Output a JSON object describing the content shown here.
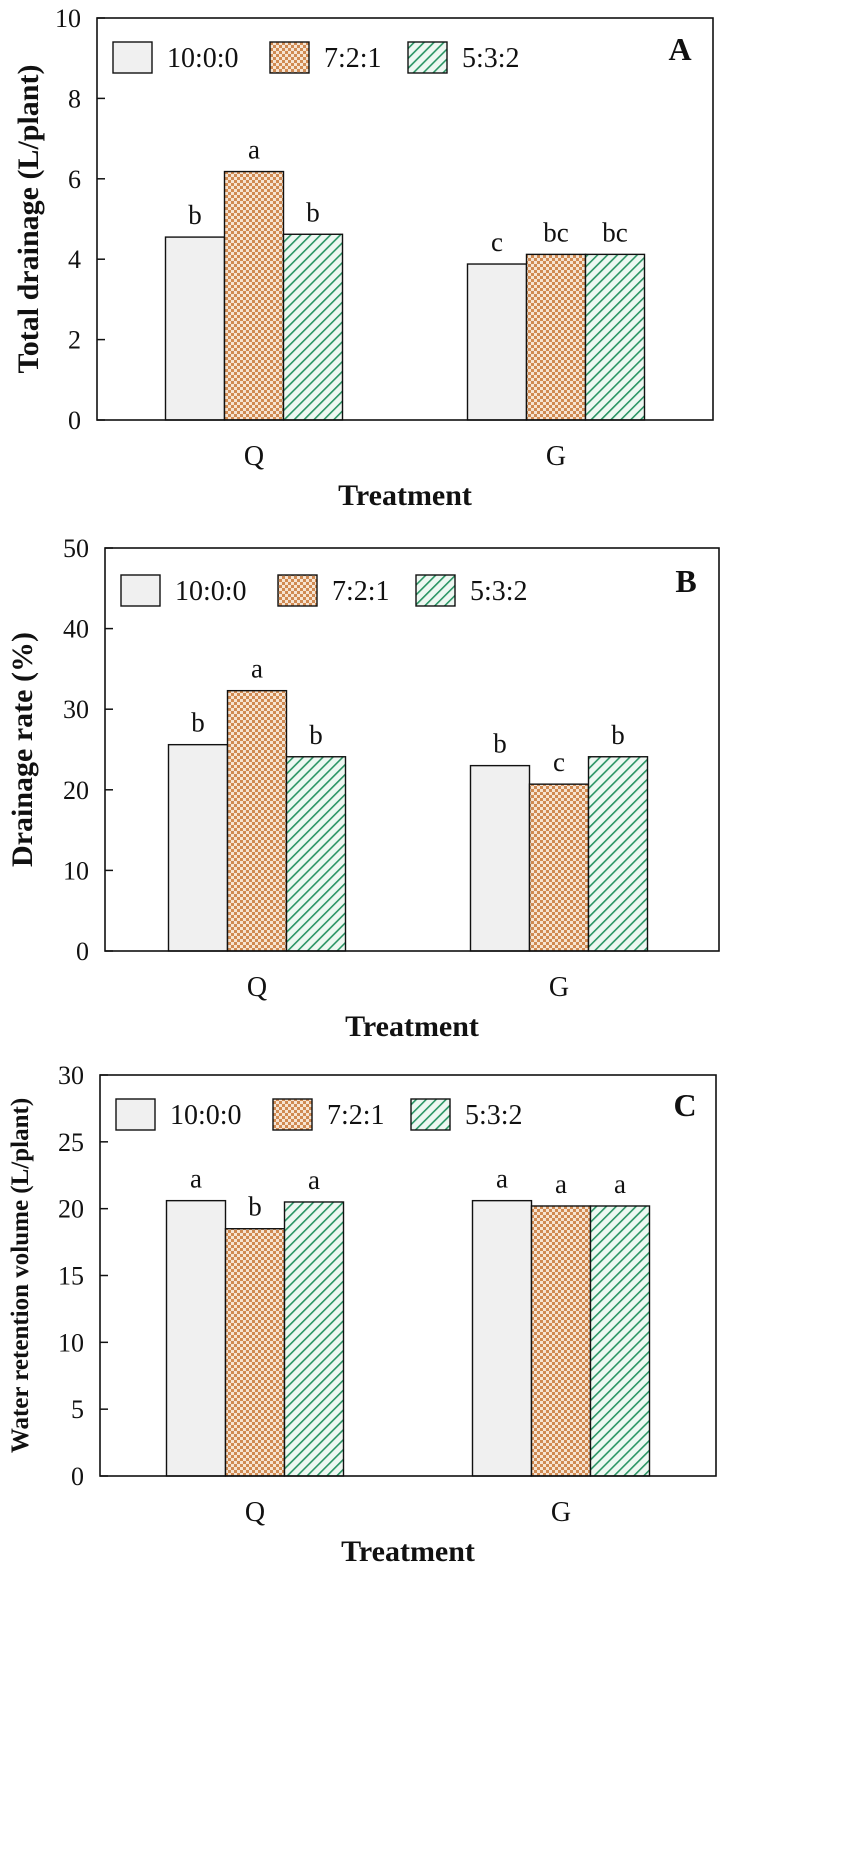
{
  "colors": {
    "bar_10_0_0": "#f0f0f0",
    "bar_7_2_1": "#d9955c",
    "bar_5_3_2": "#2f9a6a",
    "stroke": "#111111"
  },
  "chart_data": [
    {
      "type": "bar",
      "panel": "A",
      "xlabel": "Treatment",
      "ylabel": "Total drainage (L/plant)",
      "ylim": [
        0,
        10
      ],
      "yticks": [
        0,
        2,
        4,
        6,
        8,
        10
      ],
      "categories": [
        "Q",
        "G"
      ],
      "legend": "top-left",
      "series": [
        {
          "name": "10:0:0",
          "values": [
            4.55,
            3.88
          ],
          "labels": [
            "b",
            "c"
          ]
        },
        {
          "name": "7:2:1",
          "values": [
            6.18,
            4.12
          ],
          "labels": [
            "a",
            "bc"
          ]
        },
        {
          "name": "5:3:2",
          "values": [
            4.62,
            4.12
          ],
          "labels": [
            "b",
            "bc"
          ]
        }
      ]
    },
    {
      "type": "bar",
      "panel": "B",
      "xlabel": "Treatment",
      "ylabel": "Drainage rate (%)",
      "ylim": [
        0,
        50
      ],
      "yticks": [
        0,
        10,
        20,
        30,
        40,
        50
      ],
      "categories": [
        "Q",
        "G"
      ],
      "legend": "top-left",
      "series": [
        {
          "name": "10:0:0",
          "values": [
            25.6,
            23.0
          ],
          "labels": [
            "b",
            "b"
          ]
        },
        {
          "name": "7:2:1",
          "values": [
            32.3,
            20.7
          ],
          "labels": [
            "a",
            "c"
          ]
        },
        {
          "name": "5:3:2",
          "values": [
            24.1,
            24.1
          ],
          "labels": [
            "b",
            "b"
          ]
        }
      ]
    },
    {
      "type": "bar",
      "panel": "C",
      "xlabel": "Treatment",
      "ylabel": "Water retention volume (L/plant)",
      "ylim": [
        0,
        30
      ],
      "yticks": [
        0,
        5,
        10,
        15,
        20,
        25,
        30
      ],
      "categories": [
        "Q",
        "G"
      ],
      "legend": "top-left",
      "series": [
        {
          "name": "10:0:0",
          "values": [
            20.6,
            20.6
          ],
          "labels": [
            "a",
            "a"
          ]
        },
        {
          "name": "7:2:1",
          "values": [
            18.5,
            20.2
          ],
          "labels": [
            "b",
            "a"
          ]
        },
        {
          "name": "5:3:2",
          "values": [
            20.5,
            20.2
          ],
          "labels": [
            "a",
            "a"
          ]
        }
      ]
    }
  ]
}
